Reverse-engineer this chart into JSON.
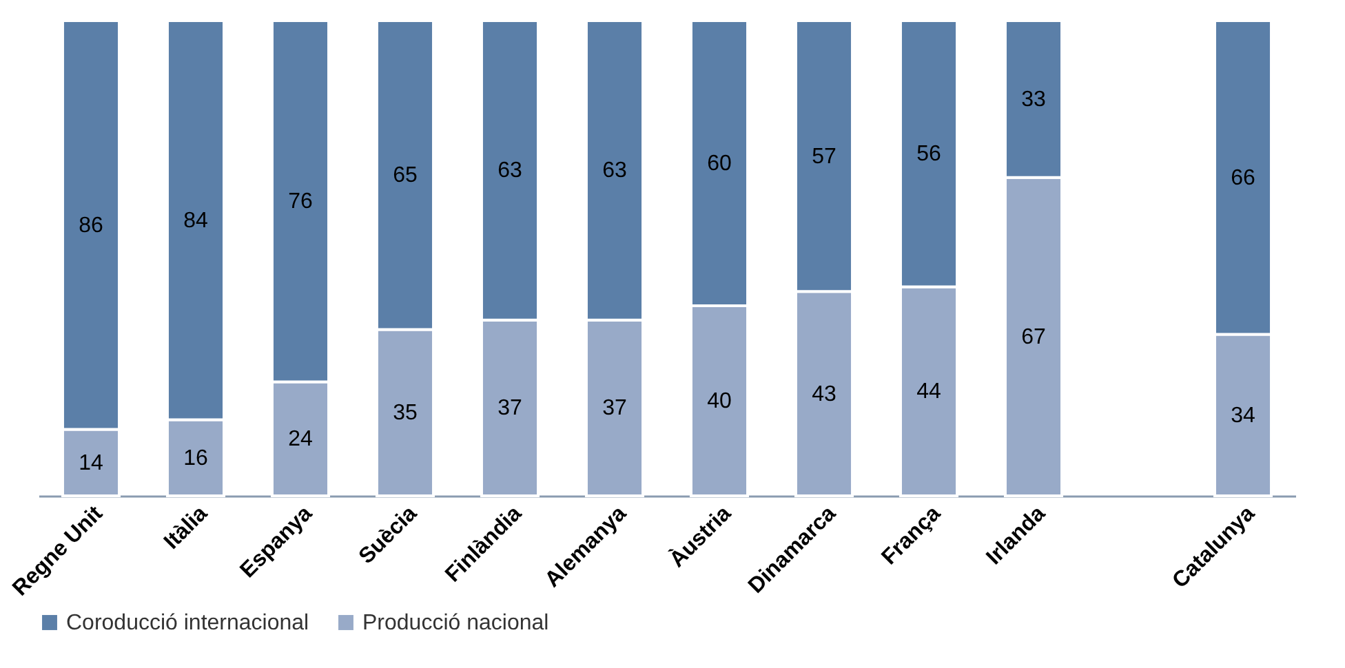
{
  "chart_data": {
    "type": "bar",
    "stacked": true,
    "data_labels": true,
    "tick_labels": "x",
    "legend": "bottom",
    "grid": false,
    "categories": [
      "Regne Unit",
      "Itàlia",
      "Espanya",
      "Suècia",
      "Finlàndia",
      "Alemanya",
      "Àustria",
      "Dinamarca",
      "França",
      "Irlanda",
      null,
      "Catalunya"
    ],
    "series": [
      {
        "name": "Producció nacional",
        "color": "#98aac8",
        "values": [
          14,
          16,
          24,
          35,
          37,
          37,
          40,
          43,
          44,
          67,
          null,
          34
        ]
      },
      {
        "name": "Coroducció internacional",
        "color": "#5b7fa8",
        "values": [
          86,
          84,
          76,
          65,
          63,
          63,
          60,
          57,
          56,
          33,
          null,
          66
        ]
      }
    ]
  }
}
